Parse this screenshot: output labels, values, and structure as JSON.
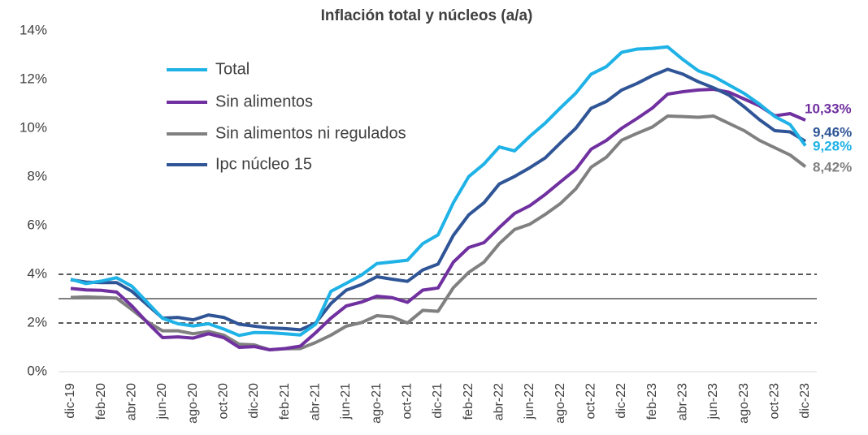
{
  "chart_data": {
    "type": "line",
    "title": "Inflación total y núcleos (a/a)",
    "categories": [
      "dic-19",
      null,
      "feb-20",
      null,
      "abr-20",
      null,
      "jun-20",
      null,
      "ago-20",
      null,
      "oct-20",
      null,
      "dic-20",
      null,
      "feb-21",
      null,
      "abr-21",
      null,
      "jun-21",
      null,
      "ago-21",
      null,
      "oct-21",
      null,
      "dic-21",
      null,
      "feb-22",
      null,
      "abr-22",
      null,
      "jun-22",
      null,
      "ago-22",
      null,
      "oct-22",
      null,
      "dic-22",
      null,
      "feb-23",
      null,
      "abr-23",
      null,
      "jun-23",
      null,
      "ago-23",
      null,
      "oct-23",
      null,
      "dic-23"
    ],
    "series": [
      {
        "name": "Total",
        "color": "#1fb2e6",
        "end_label": "9,28%",
        "values": [
          3.8,
          3.62,
          3.72,
          3.86,
          3.51,
          2.85,
          2.19,
          1.97,
          1.88,
          1.97,
          1.75,
          1.49,
          1.61,
          1.6,
          1.56,
          1.51,
          1.95,
          3.3,
          3.63,
          3.97,
          4.44,
          4.51,
          4.58,
          5.26,
          5.62,
          6.94,
          8.01,
          8.53,
          9.23,
          9.07,
          9.67,
          10.21,
          10.84,
          11.44,
          12.22,
          12.53,
          13.12,
          13.25,
          13.28,
          13.34,
          12.82,
          12.36,
          12.13,
          11.78,
          11.43,
          10.99,
          10.48,
          10.15,
          9.28
        ]
      },
      {
        "name": "Sin alimentos",
        "color": "#7030a0",
        "end_label": "10,33%",
        "values": [
          3.42,
          3.36,
          3.34,
          3.27,
          2.7,
          2.02,
          1.4,
          1.43,
          1.38,
          1.56,
          1.4,
          1.0,
          1.03,
          0.9,
          0.95,
          1.05,
          1.6,
          2.2,
          2.7,
          2.86,
          3.1,
          3.04,
          2.85,
          3.35,
          3.44,
          4.5,
          5.1,
          5.3,
          5.92,
          6.5,
          6.82,
          7.28,
          7.8,
          8.31,
          9.14,
          9.5,
          10.0,
          10.4,
          10.83,
          11.4,
          11.5,
          11.57,
          11.6,
          11.48,
          11.2,
          10.92,
          10.51,
          10.6,
          10.33
        ]
      },
      {
        "name": "Sin alimentos ni regulados",
        "color": "#808080",
        "end_label": "8,42%",
        "values": [
          3.05,
          3.07,
          3.05,
          3.02,
          2.55,
          2.05,
          1.68,
          1.68,
          1.56,
          1.65,
          1.5,
          1.13,
          1.1,
          0.9,
          0.94,
          0.95,
          1.2,
          1.5,
          1.87,
          2.02,
          2.3,
          2.25,
          2.0,
          2.52,
          2.48,
          3.45,
          4.08,
          4.5,
          5.26,
          5.84,
          6.06,
          6.46,
          6.91,
          7.51,
          8.4,
          8.81,
          9.51,
          9.79,
          10.05,
          10.5,
          10.48,
          10.45,
          10.5,
          10.2,
          9.9,
          9.5,
          9.2,
          8.9,
          8.42
        ]
      },
      {
        "name": "Ipc núcleo 15",
        "color": "#2f5597",
        "end_label": "9,46%",
        "values": [
          3.78,
          3.68,
          3.66,
          3.66,
          3.3,
          2.75,
          2.2,
          2.23,
          2.13,
          2.33,
          2.23,
          1.95,
          1.87,
          1.8,
          1.77,
          1.72,
          2.0,
          2.8,
          3.35,
          3.58,
          3.9,
          3.8,
          3.71,
          4.18,
          4.42,
          5.6,
          6.44,
          6.94,
          7.71,
          8.02,
          8.38,
          8.78,
          9.4,
          10.0,
          10.82,
          11.1,
          11.57,
          11.84,
          12.16,
          12.42,
          12.22,
          11.91,
          11.66,
          11.36,
          10.88,
          10.35,
          9.9,
          9.85,
          9.46
        ]
      }
    ],
    "ylim": [
      0,
      14
    ],
    "yticks": [
      {
        "value": 0,
        "label": "0%"
      },
      {
        "value": 2,
        "label": "2%"
      },
      {
        "value": 4,
        "label": "4%"
      },
      {
        "value": 6,
        "label": "6%"
      },
      {
        "value": 8,
        "label": "8%"
      },
      {
        "value": 10,
        "label": "10%"
      },
      {
        "value": 12,
        "label": "12%"
      },
      {
        "value": 14,
        "label": "14%"
      }
    ],
    "reference_lines": [
      {
        "value": 2,
        "style": "dashed",
        "color": "#595959"
      },
      {
        "value": 3,
        "style": "solid",
        "color": "#808080"
      },
      {
        "value": 4,
        "style": "dashed",
        "color": "#595959"
      }
    ],
    "legend": "upper left"
  }
}
